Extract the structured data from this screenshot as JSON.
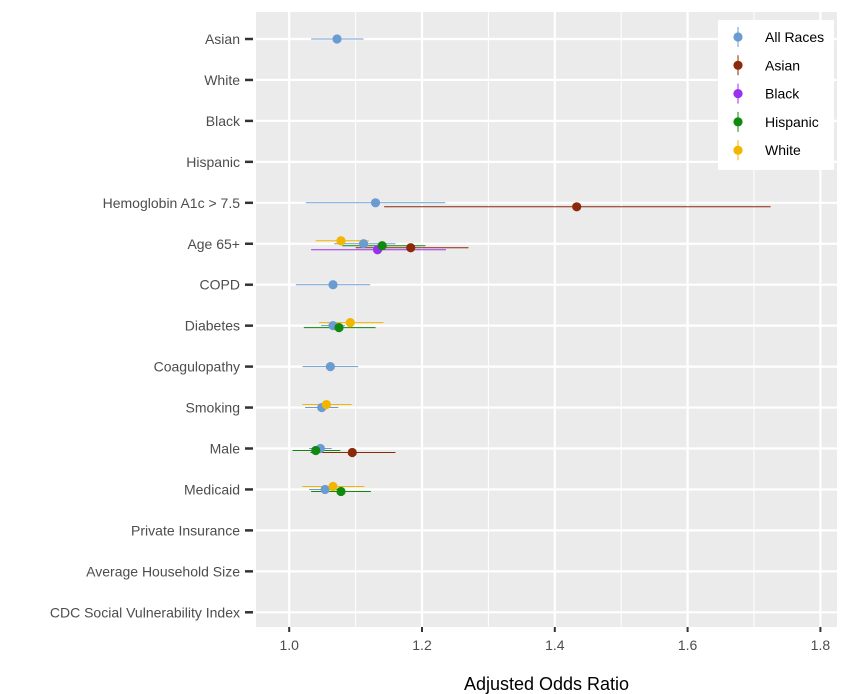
{
  "chart_data": {
    "type": "scatter",
    "subtype": "forest-plot",
    "title": "",
    "xlabel": "Adjusted Odds Ratio",
    "ylabel": "",
    "xlim": [
      0.95,
      1.825
    ],
    "x_ticks": [
      "1.0",
      "1.2",
      "1.4",
      "1.6",
      "1.8"
    ],
    "categories": [
      "Asian",
      "White",
      "Black",
      "Hispanic",
      "Hemoglobin A1c > 7.5",
      "Age 65+",
      "COPD",
      "Diabetes",
      "Coagulopathy",
      "Smoking",
      "Male",
      "Medicaid",
      "Private Insurance",
      "Average Household Size",
      "CDC Social Vulnerability Index"
    ],
    "grid": true,
    "legend_position": "top-right",
    "series": [
      {
        "name": "All Races",
        "color": "#6b9bd1",
        "points": [
          {
            "category": "Asian",
            "or": 1.072,
            "lo": 1.033,
            "hi": 1.112
          },
          {
            "category": "Hemoglobin A1c > 7.5",
            "or": 1.13,
            "lo": 1.025,
            "hi": 1.235
          },
          {
            "category": "Age 65+",
            "or": 1.112,
            "lo": 1.068,
            "hi": 1.16
          },
          {
            "category": "COPD",
            "or": 1.066,
            "lo": 1.01,
            "hi": 1.122
          },
          {
            "category": "Diabetes",
            "or": 1.066,
            "lo": 1.048,
            "hi": 1.084
          },
          {
            "category": "Coagulopathy",
            "or": 1.062,
            "lo": 1.02,
            "hi": 1.104
          },
          {
            "category": "Smoking",
            "or": 1.049,
            "lo": 1.024,
            "hi": 1.074
          },
          {
            "category": "Male",
            "or": 1.047,
            "lo": 1.03,
            "hi": 1.064
          },
          {
            "category": "Medicaid",
            "or": 1.054,
            "lo": 1.03,
            "hi": 1.079
          }
        ]
      },
      {
        "name": "Asian",
        "color": "#8b2a0a",
        "points": [
          {
            "category": "Hemoglobin A1c > 7.5",
            "or": 1.433,
            "lo": 1.143,
            "hi": 1.725
          },
          {
            "category": "Age 65+",
            "or": 1.183,
            "lo": 1.1,
            "hi": 1.27
          },
          {
            "category": "Male",
            "or": 1.095,
            "lo": 1.032,
            "hi": 1.16
          }
        ]
      },
      {
        "name": "Black",
        "color": "#9b30f0",
        "points": [
          {
            "category": "Age 65+",
            "or": 1.133,
            "lo": 1.033,
            "hi": 1.236
          }
        ]
      },
      {
        "name": "Hispanic",
        "color": "#0f8a0f",
        "points": [
          {
            "category": "Age 65+",
            "or": 1.14,
            "lo": 1.08,
            "hi": 1.205
          },
          {
            "category": "Diabetes",
            "or": 1.075,
            "lo": 1.022,
            "hi": 1.13
          },
          {
            "category": "Male",
            "or": 1.04,
            "lo": 1.005,
            "hi": 1.077
          },
          {
            "category": "Medicaid",
            "or": 1.078,
            "lo": 1.033,
            "hi": 1.123
          }
        ]
      },
      {
        "name": "White",
        "color": "#f2b600",
        "points": [
          {
            "category": "Age 65+",
            "or": 1.078,
            "lo": 1.04,
            "hi": 1.12
          },
          {
            "category": "Diabetes",
            "or": 1.092,
            "lo": 1.045,
            "hi": 1.142
          },
          {
            "category": "Smoking",
            "or": 1.056,
            "lo": 1.02,
            "hi": 1.094
          },
          {
            "category": "Medicaid",
            "or": 1.066,
            "lo": 1.02,
            "hi": 1.113
          }
        ]
      }
    ]
  },
  "colors": {
    "panel_background": "#ebebeb",
    "grid_major": "#ffffff",
    "axis_text": "#4d4d4d",
    "legend_background": "#ffffff"
  }
}
